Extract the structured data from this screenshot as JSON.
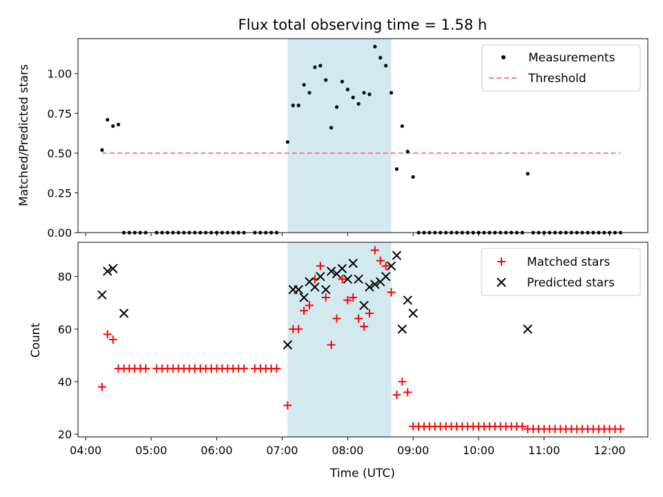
{
  "chart_data": {
    "type": "scatter",
    "title": "Flux total observing time = 1.58 h",
    "xlabel": "Time (UTC)",
    "x_ticks": [
      "04:00",
      "05:00",
      "06:00",
      "07:00",
      "08:00",
      "09:00",
      "10:00",
      "11:00",
      "12:00"
    ],
    "shaded_span": {
      "start": "07:05",
      "end": "08:40",
      "color": "#d3e9f0"
    },
    "panels": [
      {
        "ylabel": "Matched/Predicted stars",
        "ylim": [
          0,
          1.22
        ],
        "y_ticks": [
          "0.00",
          "0.25",
          "0.50",
          "0.75",
          "1.00"
        ],
        "y_tick_values": [
          0,
          0.25,
          0.5,
          0.75,
          1.0
        ],
        "legend": {
          "position": "top-right",
          "items": [
            "Measurements",
            "Threshold"
          ]
        },
        "threshold": {
          "name": "Threshold",
          "y": 0.5,
          "x_start": "04:15",
          "x_end": "12:10",
          "color": "#ff7a7a"
        },
        "series": [
          {
            "name": "Measurements",
            "marker": "dot",
            "color": "#000000",
            "x": [
              "04:15",
              "04:20",
              "04:25",
              "04:30",
              "04:35",
              "04:40",
              "04:45",
              "04:50",
              "04:55",
              "05:05",
              "05:10",
              "05:15",
              "05:20",
              "05:25",
              "05:30",
              "05:35",
              "05:40",
              "05:45",
              "05:50",
              "05:55",
              "06:00",
              "06:05",
              "06:10",
              "06:15",
              "06:20",
              "06:25",
              "06:35",
              "06:40",
              "06:45",
              "06:50",
              "06:55",
              "07:05",
              "07:10",
              "07:15",
              "07:20",
              "07:25",
              "07:30",
              "07:35",
              "07:40",
              "07:45",
              "07:50",
              "07:55",
              "08:00",
              "08:05",
              "08:10",
              "08:15",
              "08:20",
              "08:25",
              "08:30",
              "08:35",
              "08:40",
              "08:45",
              "08:50",
              "08:55",
              "09:00",
              "09:05",
              "09:10",
              "09:15",
              "09:20",
              "09:25",
              "09:30",
              "09:35",
              "09:40",
              "09:45",
              "09:50",
              "09:55",
              "10:00",
              "10:05",
              "10:10",
              "10:15",
              "10:20",
              "10:25",
              "10:30",
              "10:35",
              "10:40",
              "10:45",
              "10:50",
              "10:55",
              "11:00",
              "11:05",
              "11:10",
              "11:15",
              "11:20",
              "11:25",
              "11:30",
              "11:35",
              "11:40",
              "11:45",
              "11:50",
              "11:55",
              "12:00",
              "12:05",
              "12:10"
            ],
            "y": [
              0.52,
              0.71,
              0.67,
              0.68,
              0,
              0,
              0,
              0,
              0,
              0,
              0,
              0,
              0,
              0,
              0,
              0,
              0,
              0,
              0,
              0,
              0,
              0,
              0,
              0,
              0,
              0,
              0,
              0,
              0,
              0,
              0,
              0.57,
              0.8,
              0.8,
              0.93,
              0.88,
              1.04,
              1.05,
              0.96,
              0.66,
              0.79,
              0.95,
              0.9,
              0.85,
              0.81,
              0.88,
              0.87,
              1.17,
              1.1,
              1.05,
              0.88,
              0.4,
              0.67,
              0.51,
              0.35,
              0,
              0,
              0,
              0,
              0,
              0,
              0,
              0,
              0,
              0,
              0,
              0,
              0,
              0,
              0,
              0,
              0,
              0,
              0,
              0,
              0.37,
              0,
              0,
              0,
              0,
              0,
              0,
              0,
              0,
              0,
              0,
              0,
              0,
              0,
              0,
              0,
              0,
              0
            ]
          }
        ]
      },
      {
        "ylabel": "Count",
        "ylim": [
          19,
          93
        ],
        "y_ticks": [
          "20",
          "40",
          "60",
          "80"
        ],
        "y_tick_values": [
          20,
          40,
          60,
          80
        ],
        "legend": {
          "position": "top-right",
          "items": [
            "Matched stars",
            "Predicted stars"
          ]
        },
        "series": [
          {
            "name": "Matched stars",
            "marker": "plus",
            "color": "#ff0000",
            "x": [
              "04:15",
              "04:20",
              "04:25",
              "04:30",
              "04:35",
              "04:40",
              "04:45",
              "04:50",
              "04:55",
              "05:05",
              "05:10",
              "05:15",
              "05:20",
              "05:25",
              "05:30",
              "05:35",
              "05:40",
              "05:45",
              "05:50",
              "05:55",
              "06:00",
              "06:05",
              "06:10",
              "06:15",
              "06:20",
              "06:25",
              "06:35",
              "06:40",
              "06:45",
              "06:50",
              "06:55",
              "07:05",
              "07:10",
              "07:15",
              "07:20",
              "07:25",
              "07:30",
              "07:35",
              "07:40",
              "07:45",
              "07:50",
              "07:55",
              "08:00",
              "08:05",
              "08:10",
              "08:15",
              "08:20",
              "08:25",
              "08:30",
              "08:35",
              "08:40",
              "08:45",
              "08:50",
              "08:55",
              "09:00",
              "09:05",
              "09:10",
              "09:15",
              "09:20",
              "09:25",
              "09:30",
              "09:35",
              "09:40",
              "09:45",
              "09:50",
              "09:55",
              "10:00",
              "10:05",
              "10:10",
              "10:15",
              "10:20",
              "10:25",
              "10:30",
              "10:35",
              "10:40",
              "10:45",
              "10:50",
              "10:55",
              "11:00",
              "11:05",
              "11:10",
              "11:15",
              "11:20",
              "11:25",
              "11:30",
              "11:35",
              "11:40",
              "11:45",
              "11:50",
              "11:55",
              "12:00",
              "12:05",
              "12:10"
            ],
            "y": [
              38,
              58,
              56,
              45,
              45,
              45,
              45,
              45,
              45,
              45,
              45,
              45,
              45,
              45,
              45,
              45,
              45,
              45,
              45,
              45,
              45,
              45,
              45,
              45,
              45,
              45,
              45,
              45,
              45,
              45,
              45,
              31,
              60,
              60,
              67,
              69,
              79,
              84,
              72,
              54,
              64,
              79,
              71,
              72,
              64,
              61,
              66,
              90,
              86,
              84,
              74,
              35,
              40,
              36,
              23,
              23,
              23,
              23,
              23,
              23,
              23,
              23,
              23,
              23,
              23,
              23,
              23,
              23,
              23,
              23,
              23,
              23,
              23,
              23,
              23,
              22,
              22,
              22,
              22,
              22,
              22,
              22,
              22,
              22,
              22,
              22,
              22,
              22,
              22,
              22,
              22,
              22,
              22
            ]
          },
          {
            "name": "Predicted stars",
            "marker": "x",
            "color": "#000000",
            "x": [
              "04:15",
              "04:20",
              "04:25",
              "04:35",
              "07:05",
              "07:10",
              "07:15",
              "07:20",
              "07:25",
              "07:30",
              "07:35",
              "07:40",
              "07:45",
              "07:50",
              "07:55",
              "08:00",
              "08:05",
              "08:10",
              "08:15",
              "08:20",
              "08:25",
              "08:30",
              "08:35",
              "08:40",
              "08:45",
              "08:50",
              "08:55",
              "09:00",
              "10:45"
            ],
            "y": [
              73,
              82,
              83,
              66,
              54,
              75,
              75,
              72,
              78,
              76,
              80,
              75,
              82,
              81,
              83,
              79,
              85,
              79,
              69,
              76,
              77,
              78,
              80,
              84,
              88,
              60,
              71,
              66,
              60
            ]
          }
        ]
      }
    ]
  }
}
